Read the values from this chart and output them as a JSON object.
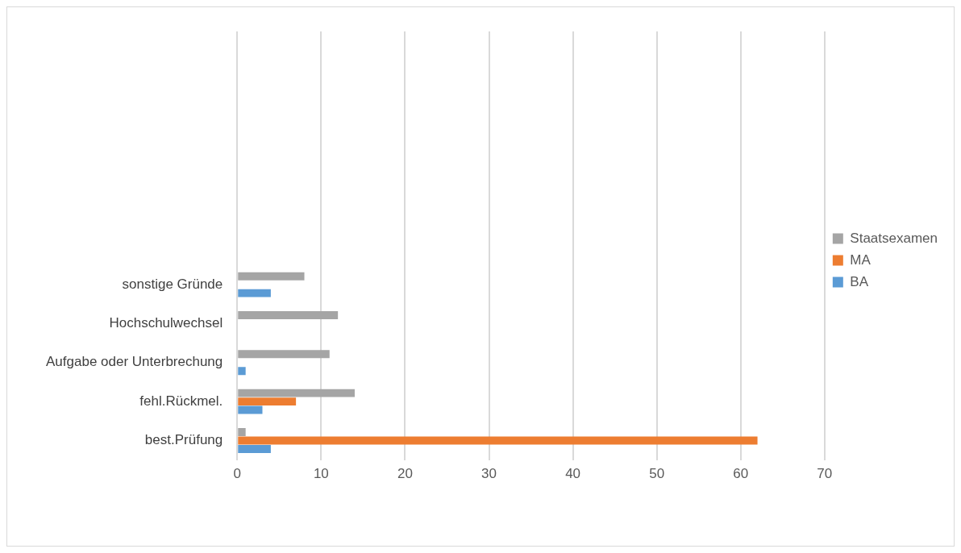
{
  "chart_data": {
    "type": "bar",
    "orientation": "horizontal",
    "categories": [
      null,
      null,
      null,
      null,
      null,
      null,
      "sonstige Gründe",
      "Hochschulwechsel",
      "Aufgabe oder Unterbrechung",
      "fehl.Rückmel.",
      "best.Prüfung"
    ],
    "series": [
      {
        "name": "Staatsexamen",
        "color": "#a5a5a5",
        "values": [
          null,
          null,
          null,
          null,
          null,
          null,
          8,
          12,
          11,
          14,
          1
        ]
      },
      {
        "name": "MA",
        "color": "#ed7d31",
        "values": [
          null,
          null,
          null,
          null,
          null,
          null,
          null,
          null,
          null,
          7,
          62
        ]
      },
      {
        "name": "BA",
        "color": "#5b9bd5",
        "values": [
          null,
          null,
          null,
          null,
          null,
          null,
          4,
          null,
          1,
          3,
          4
        ]
      }
    ],
    "xlim": [
      0,
      70
    ],
    "xticks": [
      0,
      10,
      20,
      30,
      40,
      50,
      60,
      70
    ],
    "grid": "x",
    "legend": "right"
  }
}
